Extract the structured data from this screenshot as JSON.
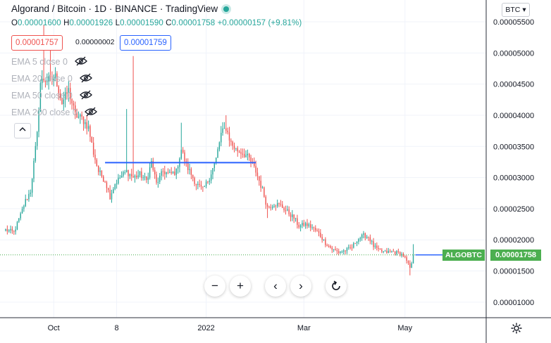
{
  "header": {
    "title": "Algorand / Bitcoin · 1D · BINANCE · TradingView",
    "ohlc": {
      "o_label": "O",
      "o": "0.00001600",
      "h_label": "H",
      "h": "0.00001926",
      "l_label": "L",
      "l": "0.00001590",
      "c_label": "C",
      "c": "0.00001758",
      "change": "+0.00000157 (+9.81%)"
    },
    "bid": "0.00001757",
    "spread": "0.00000002",
    "ask": "0.00001759",
    "indicators": [
      "EMA 5 close 0",
      "EMA 20 close 0",
      "EMA 50 close 0",
      "EMA 200 close 0"
    ],
    "collapse_icon": "chevron-up-icon"
  },
  "controls": {
    "zoom_out": "−",
    "zoom_in": "+",
    "scroll_left": "‹",
    "scroll_right": "›",
    "reset_icon": "reset-icon"
  },
  "axis_currency": "BTC",
  "colors": {
    "up": "#26a69a",
    "down": "#ef5350",
    "trendline": "#2962ff",
    "last_price": "#4caf50"
  },
  "chart_data": {
    "type": "candlestick",
    "title": "Algorand / Bitcoin · 1D · BINANCE",
    "symbol_label": "ALGOBTC",
    "last_price": "0.00001758",
    "y_ticks": [
      "0.00001000",
      "0.00001500",
      "0.00002000",
      "0.00002500",
      "0.00003000",
      "0.00003500",
      "0.00004000",
      "0.00004500",
      "0.00005000",
      "0.00005500"
    ],
    "ylim": [
      7.5e-06,
      5.85e-05
    ],
    "x_ticks": [
      "Oct",
      "8",
      "2022",
      "Mar",
      "May"
    ],
    "x_tick_dates": [
      "2021-10-01",
      "2021-11-08",
      "2022-01-01",
      "2022-03-01",
      "2022-05-01"
    ],
    "xlim": [
      "2021-09-02",
      "2022-06-19"
    ],
    "trendline": {
      "from_date": "2021-11-01",
      "to_date": "2022-01-31",
      "value": 3.24e-05
    },
    "path": [
      [
        "2021-09-02",
        2.16e-05
      ],
      [
        "2021-09-07",
        2.12e-05
      ],
      [
        "2021-09-11",
        2.4e-05
      ],
      [
        "2021-09-14",
        2.63e-05
      ],
      [
        "2021-09-17",
        2.78e-05
      ],
      [
        "2021-09-21",
        3.7e-05
      ],
      [
        "2021-09-23",
        4.52e-05
      ],
      [
        "2021-09-25",
        4.58e-05
      ],
      [
        "2021-09-29",
        4.55e-05
      ],
      [
        "2021-10-02",
        4.62e-05
      ],
      [
        "2021-10-06",
        4.2e-05
      ],
      [
        "2021-10-10",
        4.4e-05
      ],
      [
        "2021-10-14",
        4e-05
      ],
      [
        "2021-10-18",
        3.95e-05
      ],
      [
        "2021-10-22",
        3.8e-05
      ],
      [
        "2021-10-25",
        3.4e-05
      ],
      [
        "2021-10-28",
        3.1e-05
      ],
      [
        "2021-11-01",
        2.95e-05
      ],
      [
        "2021-11-04",
        2.7e-05
      ],
      [
        "2021-11-07",
        2.9e-05
      ],
      [
        "2021-11-10",
        3e-05
      ],
      [
        "2021-11-14",
        3.1e-05
      ],
      [
        "2021-11-18",
        3e-05
      ],
      [
        "2021-11-22",
        3.05e-05
      ],
      [
        "2021-11-26",
        2.95e-05
      ],
      [
        "2021-11-29",
        3.25e-05
      ],
      [
        "2021-12-02",
        2.9e-05
      ],
      [
        "2021-12-06",
        3.1e-05
      ],
      [
        "2021-12-10",
        3.05e-05
      ],
      [
        "2021-12-14",
        3.1e-05
      ],
      [
        "2021-12-17",
        3.45e-05
      ],
      [
        "2021-12-20",
        3.2e-05
      ],
      [
        "2021-12-23",
        3.05e-05
      ],
      [
        "2021-12-26",
        2.9e-05
      ],
      [
        "2021-12-30",
        2.8e-05
      ],
      [
        "2022-01-03",
        3e-05
      ],
      [
        "2022-01-07",
        3.3e-05
      ],
      [
        "2022-01-10",
        3.7e-05
      ],
      [
        "2022-01-13",
        3.8e-05
      ],
      [
        "2022-01-16",
        3.55e-05
      ],
      [
        "2022-01-19",
        3.45e-05
      ],
      [
        "2022-01-23",
        3.4e-05
      ],
      [
        "2022-01-27",
        3.3e-05
      ],
      [
        "2022-01-31",
        3.1e-05
      ],
      [
        "2022-02-04",
        2.8e-05
      ],
      [
        "2022-02-07",
        2.52e-05
      ],
      [
        "2022-02-11",
        2.58e-05
      ],
      [
        "2022-02-15",
        2.55e-05
      ],
      [
        "2022-02-19",
        2.45e-05
      ],
      [
        "2022-02-23",
        2.35e-05
      ],
      [
        "2022-02-26",
        2.22e-05
      ],
      [
        "2022-03-02",
        2.25e-05
      ],
      [
        "2022-03-06",
        2.2e-05
      ],
      [
        "2022-03-10",
        2.1e-05
      ],
      [
        "2022-03-14",
        1.95e-05
      ],
      [
        "2022-03-18",
        1.85e-05
      ],
      [
        "2022-03-22",
        1.8e-05
      ],
      [
        "2022-03-26",
        1.83e-05
      ],
      [
        "2022-03-30",
        1.88e-05
      ],
      [
        "2022-04-02",
        2e-05
      ],
      [
        "2022-04-06",
        2.07e-05
      ],
      [
        "2022-04-09",
        2.05e-05
      ],
      [
        "2022-04-12",
        1.9e-05
      ],
      [
        "2022-04-15",
        1.83e-05
      ],
      [
        "2022-04-19",
        1.8e-05
      ],
      [
        "2022-04-23",
        1.81e-05
      ],
      [
        "2022-04-27",
        1.79e-05
      ],
      [
        "2022-04-30",
        1.75e-05
      ],
      [
        "2022-05-02",
        1.65e-05
      ],
      [
        "2022-05-04",
        1.55e-05
      ],
      [
        "2022-05-05",
        1.6e-05
      ],
      [
        "2022-05-06",
        1.76e-05
      ]
    ],
    "spikes": [
      {
        "date": "2021-09-25",
        "high": 5.45e-05
      },
      {
        "date": "2021-09-29",
        "high": 5.25e-05
      },
      {
        "date": "2021-11-14",
        "high": 4.1e-05
      },
      {
        "date": "2021-11-18",
        "high": 4.95e-05
      },
      {
        "date": "2021-12-17",
        "high": 3.88e-05
      },
      {
        "date": "2022-01-13",
        "high": 4e-05
      },
      {
        "date": "2022-02-07",
        "low": 2.35e-05
      },
      {
        "date": "2022-05-04",
        "low": 1.43e-05
      },
      {
        "date": "2022-05-06",
        "high": 1.93e-05
      }
    ]
  }
}
